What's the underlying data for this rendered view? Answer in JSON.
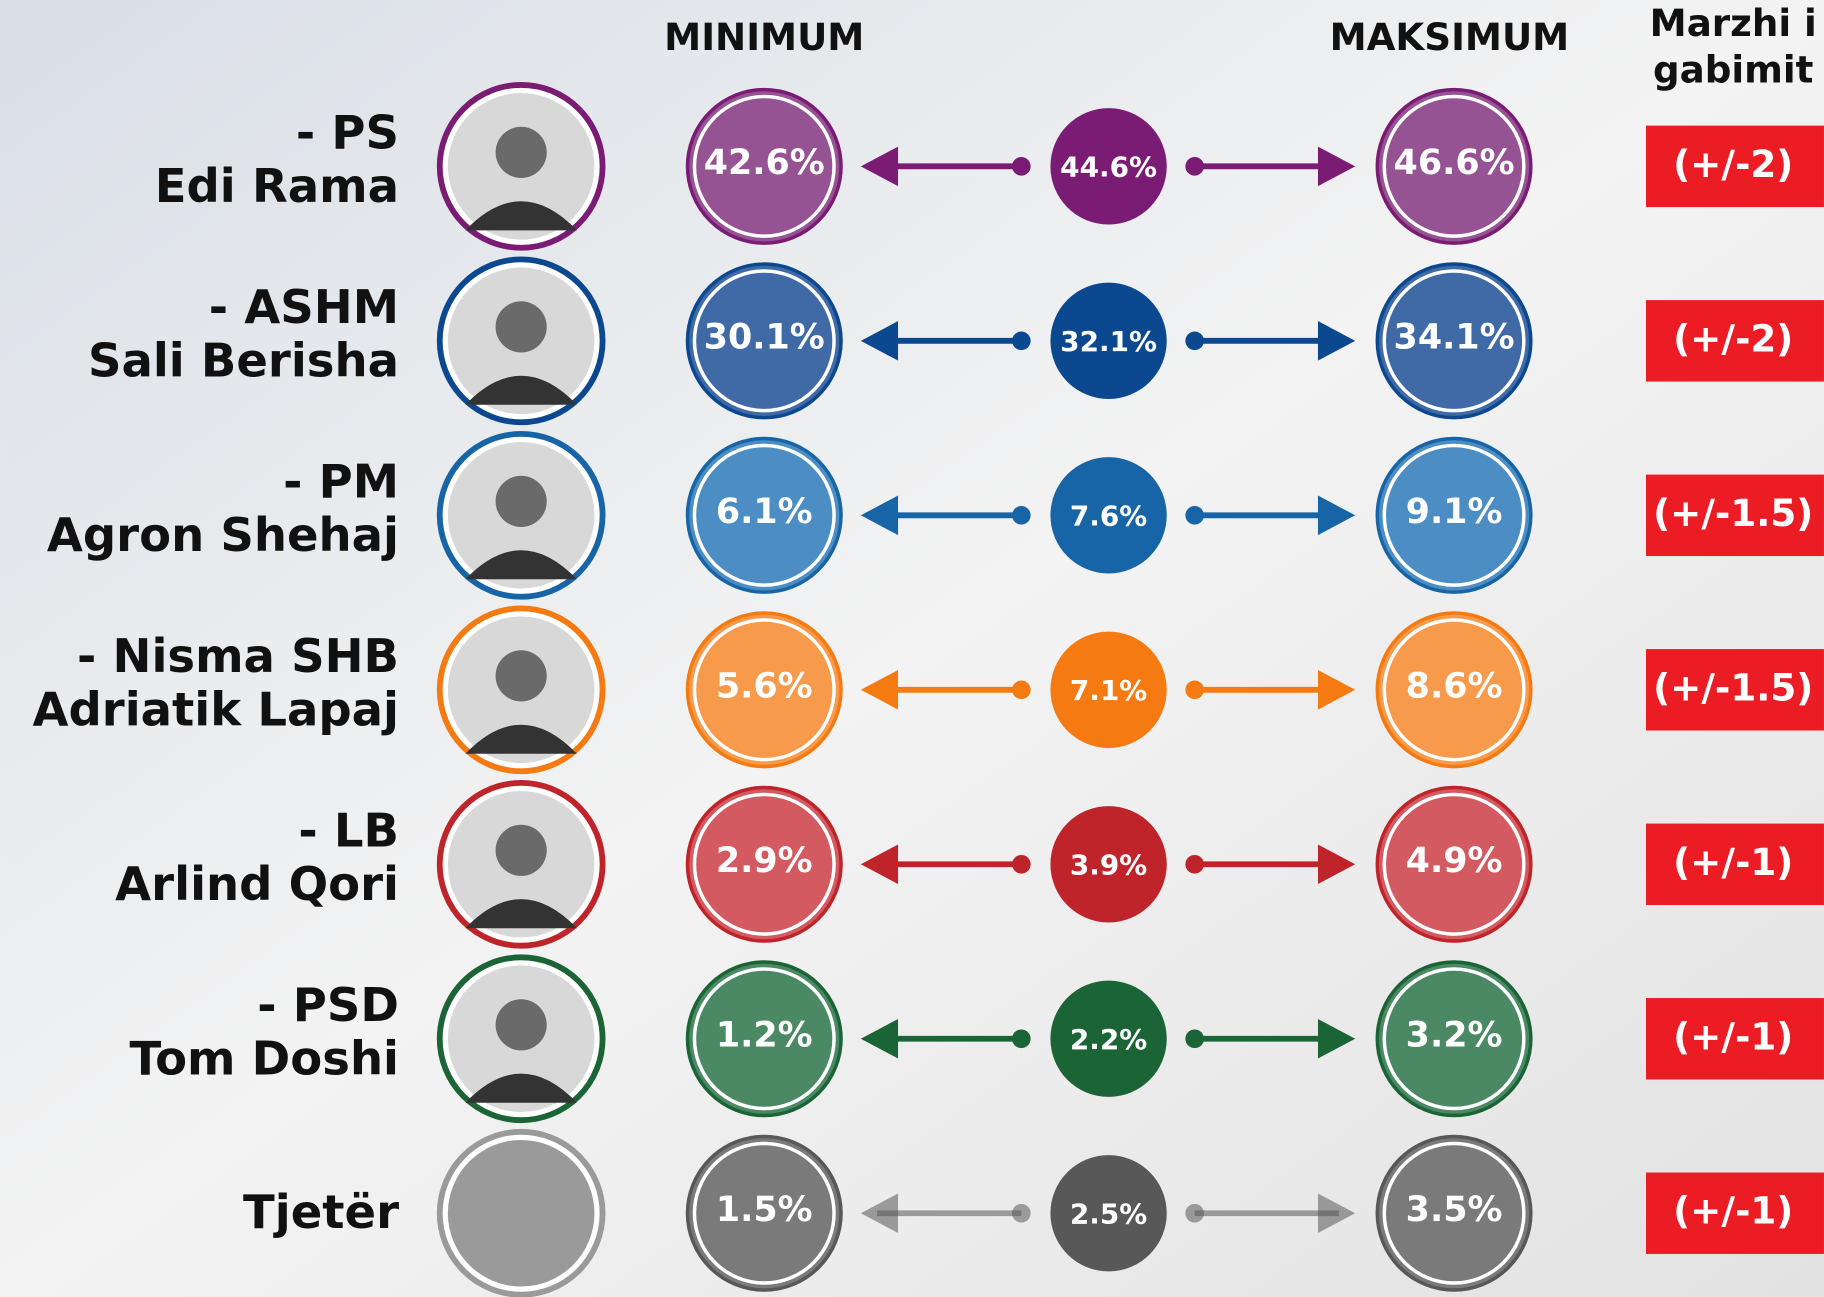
{
  "header": {
    "minimum": "MINIMUM",
    "maximum": "MAKSIMUM",
    "margin": [
      "Marzhi i",
      "gabimit"
    ]
  },
  "rows": [
    {
      "labels": [
        "- PS",
        "Edi Rama"
      ],
      "min": "42.6%",
      "mid": "44.6%",
      "max": "46.6%",
      "margin": "(+/-2)",
      "color": "#7b1c74",
      "light": "#965394"
    },
    {
      "labels": [
        "- ASHM",
        "Sali Berisha"
      ],
      "min": "30.1%",
      "mid": "32.1%",
      "max": "34.1%",
      "margin": "(+/-2)",
      "color": "#0c4890",
      "light": "#3f6aa6"
    },
    {
      "labels": [
        "- PM",
        "Agron Shehaj"
      ],
      "min": "6.1%",
      "mid": "7.6%",
      "max": "9.1%",
      "margin": "(+/-1.5)",
      "color": "#1765a6",
      "light": "#4c8ec4"
    },
    {
      "labels": [
        "- Nisma SHB",
        "Adriatik Lapaj"
      ],
      "min": "5.6%",
      "mid": "7.1%",
      "max": "8.6%",
      "margin": "(+/-1.5)",
      "color": "#f57a12",
      "light": "#f79a4b"
    },
    {
      "labels": [
        "- LB",
        "Arlind Qori"
      ],
      "min": "2.9%",
      "mid": "3.9%",
      "max": "4.9%",
      "margin": "(+/-1)",
      "color": "#bf242b",
      "light": "#d35a60"
    },
    {
      "labels": [
        "- PSD",
        "Tom Doshi"
      ],
      "min": "1.2%",
      "mid": "2.2%",
      "max": "3.2%",
      "margin": "(+/-1)",
      "color": "#1b6436",
      "light": "#4b8964"
    },
    {
      "labels": [
        "Tjetër"
      ],
      "min": "1.5%",
      "mid": "2.5%",
      "max": "3.5%",
      "margin": "(+/-1)",
      "color": "#585858",
      "light": "#7a7a7a"
    }
  ]
}
